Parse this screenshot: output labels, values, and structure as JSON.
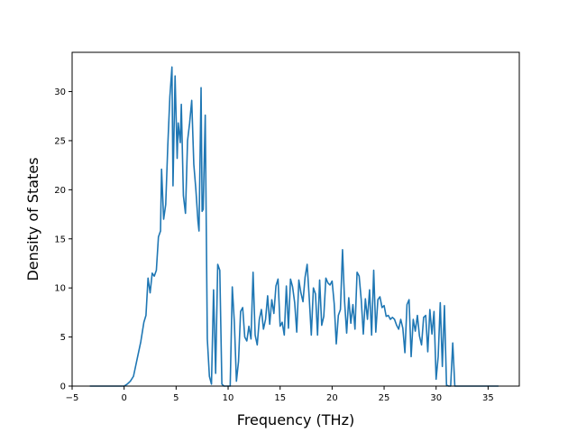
{
  "chart_data": {
    "type": "line",
    "title": "",
    "xlabel": "Frequency (THz)",
    "ylabel": "Density of States",
    "xlim": [
      -5.0,
      38.0
    ],
    "ylim": [
      0,
      34
    ],
    "xticks": [
      -5,
      0,
      5,
      10,
      15,
      20,
      25,
      30,
      35
    ],
    "yticks": [
      0,
      5,
      10,
      15,
      20,
      25,
      30
    ],
    "grid": false,
    "legend": "none",
    "line_color": "#1f77b4",
    "series": [
      {
        "name": "",
        "x": [
          -3.3,
          -1.0,
          0.0,
          0.3,
          0.6,
          0.9,
          1.1,
          1.3,
          1.6,
          1.9,
          2.1,
          2.3,
          2.5,
          2.7,
          2.9,
          3.1,
          3.3,
          3.5,
          3.6,
          3.8,
          4.0,
          4.2,
          4.4,
          4.6,
          4.7,
          4.9,
          5.1,
          5.2,
          5.4,
          5.5,
          5.7,
          5.9,
          6.1,
          6.3,
          6.5,
          6.7,
          6.9,
          7.1,
          7.2,
          7.4,
          7.5,
          7.6,
          7.8,
          8.0,
          8.2,
          8.4,
          8.6,
          8.8,
          9.0,
          9.2,
          9.4,
          9.6,
          9.8,
          10.0,
          10.2,
          10.4,
          10.6,
          10.8,
          11.0,
          11.2,
          11.4,
          11.6,
          11.8,
          12.0,
          12.2,
          12.4,
          12.6,
          12.8,
          13.0,
          13.2,
          13.4,
          13.6,
          13.8,
          14.0,
          14.2,
          14.4,
          14.6,
          14.8,
          15.0,
          15.2,
          15.4,
          15.6,
          15.8,
          16.0,
          16.2,
          16.4,
          16.6,
          16.8,
          17.0,
          17.2,
          17.4,
          17.6,
          17.8,
          18.0,
          18.2,
          18.4,
          18.6,
          18.8,
          19.0,
          19.2,
          19.4,
          19.6,
          19.8,
          20.0,
          20.2,
          20.4,
          20.6,
          20.8,
          21.0,
          21.2,
          21.4,
          21.6,
          21.8,
          22.0,
          22.2,
          22.4,
          22.6,
          22.8,
          23.0,
          23.2,
          23.4,
          23.6,
          23.8,
          24.0,
          24.2,
          24.4,
          24.6,
          24.8,
          25.0,
          25.2,
          25.4,
          25.6,
          25.8,
          26.0,
          26.2,
          26.4,
          26.6,
          26.8,
          27.0,
          27.2,
          27.4,
          27.6,
          27.8,
          28.0,
          28.2,
          28.4,
          28.6,
          28.8,
          29.0,
          29.2,
          29.4,
          29.6,
          29.8,
          30.0,
          30.2,
          30.4,
          30.6,
          30.8,
          31.0,
          31.2,
          31.4,
          31.6,
          31.8,
          32.0,
          36.0
        ],
        "y": [
          0,
          0,
          0,
          0.2,
          0.5,
          1.0,
          2.0,
          3.0,
          4.5,
          6.5,
          7.2,
          11.0,
          9.5,
          11.5,
          11.2,
          11.8,
          15.2,
          15.8,
          22.1,
          17.0,
          18.5,
          24.5,
          29.5,
          32.5,
          20.4,
          31.6,
          23.2,
          26.8,
          24.8,
          28.7,
          19.4,
          17.6,
          25.0,
          26.8,
          29.1,
          22.6,
          20.0,
          16.8,
          15.8,
          30.4,
          17.8,
          18.0,
          27.6,
          4.8,
          1.0,
          0.2,
          9.8,
          1.3,
          12.4,
          11.8,
          0.2,
          0,
          0,
          0,
          0,
          10.1,
          6.5,
          0.5,
          2.5,
          7.6,
          8.0,
          5.0,
          4.6,
          6.1,
          4.8,
          11.6,
          5.2,
          4.2,
          6.8,
          7.8,
          5.8,
          6.8,
          9.2,
          6.3,
          8.8,
          7.4,
          10.2,
          10.9,
          6.1,
          6.5,
          5.2,
          10.2,
          5.9,
          10.9,
          10.1,
          8.5,
          5.5,
          10.8,
          9.5,
          8.6,
          11.1,
          12.4,
          9.0,
          5.2,
          10.0,
          9.4,
          5.2,
          10.8,
          6.2,
          7.1,
          11.0,
          10.5,
          10.3,
          10.7,
          8.4,
          4.3,
          7.2,
          7.8,
          13.9,
          8.6,
          5.4,
          9.0,
          6.4,
          8.3,
          5.8,
          11.6,
          11.2,
          8.8,
          5.3,
          8.9,
          6.8,
          9.8,
          5.2,
          11.8,
          5.5,
          8.8,
          9.1,
          8.0,
          8.2,
          7.1,
          7.2,
          6.8,
          7.0,
          6.8,
          6.2,
          5.8,
          6.8,
          5.9,
          3.4,
          8.3,
          8.8,
          3.0,
          6.8,
          5.6,
          7.2,
          5.1,
          4.2,
          7.0,
          7.2,
          3.5,
          7.8,
          5.3,
          7.6,
          0.7,
          3.0,
          8.5,
          2.0,
          8.2,
          0.1,
          0,
          0,
          4.4,
          0,
          0,
          0
        ]
      }
    ]
  }
}
